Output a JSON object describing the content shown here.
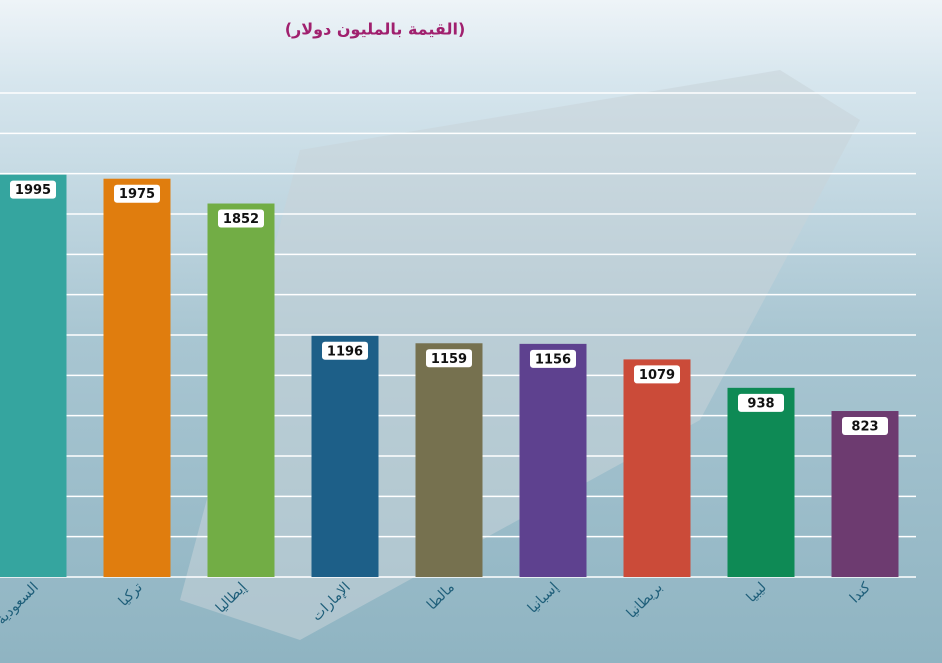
{
  "chart_data": {
    "type": "bar",
    "subtitle": "(القيمة بالمليون دولار)",
    "categories": [
      "السعودية",
      "تركيا",
      "إيطاليا",
      "الإمارات",
      "مالطا",
      "إسبانيا",
      "بريطانيا",
      "ليبيا",
      "كندا"
    ],
    "values": [
      1995,
      1975,
      1852,
      1196,
      1159,
      1156,
      1079,
      938,
      823
    ],
    "colors": [
      "#35a59f",
      "#e07d0e",
      "#72ad45",
      "#1d5f88",
      "#76714f",
      "#5e418f",
      "#cb4b39",
      "#0e8a55",
      "#6d3b70"
    ],
    "ylim": [
      0,
      2400
    ],
    "yticks": [
      0,
      200,
      400,
      600,
      800,
      1000,
      1200,
      1400,
      1600,
      1800,
      2000,
      2200,
      2400
    ],
    "grid": true
  }
}
